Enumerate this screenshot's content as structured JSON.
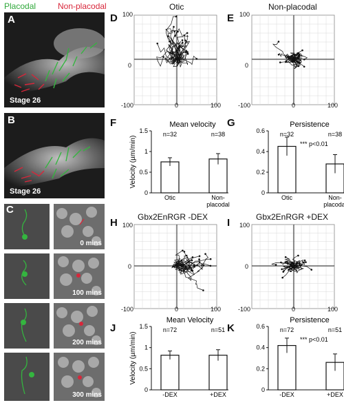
{
  "header": {
    "placodal": "Placodal",
    "non_placodal": "Non-placodal",
    "placodal_color": "#2fa83a",
    "non_placodal_color": "#d8263a"
  },
  "panels": {
    "A": {
      "letter": "A",
      "stage": "Stage 26"
    },
    "B": {
      "letter": "B",
      "stage": "Stage 26"
    },
    "C": {
      "letter": "C",
      "times": [
        "0 mins",
        "100 mins",
        "200 mins",
        "300 mins"
      ]
    },
    "D": {
      "letter": "D",
      "title": "Otic"
    },
    "E": {
      "letter": "E",
      "title": "Non-placodal"
    },
    "F": {
      "letter": "F"
    },
    "G": {
      "letter": "G"
    },
    "H": {
      "letter": "H",
      "title": "Gbx2EnRGR -DEX"
    },
    "I": {
      "letter": "I",
      "title": "Gbx2EnRGR +DEX"
    },
    "J": {
      "letter": "J"
    },
    "K": {
      "letter": "K"
    }
  },
  "track_ticks": {
    "top": "100",
    "zero": "0",
    "neg": "-100",
    "right": "100",
    "yzero": "0"
  },
  "chart_data": [
    {
      "id": "F",
      "type": "bar",
      "title": "Mean velocity",
      "ylabel": "Velocity (µm/min)",
      "ylim": [
        0,
        1.5
      ],
      "yticks": [
        "0",
        "0.5",
        "1",
        "1.5"
      ],
      "categories": [
        "Otic",
        "Non-placodal"
      ],
      "values": [
        0.75,
        0.82
      ],
      "errors": [
        0.1,
        0.13
      ],
      "n_labels": [
        "n=32",
        "n=38"
      ],
      "annotation": ""
    },
    {
      "id": "G",
      "type": "bar",
      "title": "Persistence",
      "ylabel": "",
      "ylim": [
        0,
        0.6
      ],
      "yticks": [
        "0",
        "0.2",
        "0.4",
        "0.6"
      ],
      "categories": [
        "Otic",
        "Non-placodal"
      ],
      "values": [
        0.45,
        0.28
      ],
      "errors": [
        0.09,
        0.09
      ],
      "n_labels": [
        "n=32",
        "n=38"
      ],
      "annotation": "*** p<0.01"
    },
    {
      "id": "J",
      "type": "bar",
      "title": "Mean Velocity",
      "ylabel": "Velocity (µm/min)",
      "ylim": [
        0,
        1.5
      ],
      "yticks": [
        "0",
        "0.5",
        "1",
        "1.5"
      ],
      "categories": [
        "-DEX",
        "+DEX"
      ],
      "values": [
        0.82,
        0.82
      ],
      "errors": [
        0.1,
        0.13
      ],
      "n_labels": [
        "n=72",
        "n=51"
      ],
      "annotation": ""
    },
    {
      "id": "K",
      "type": "bar",
      "title": "Persistence",
      "ylabel": "",
      "ylim": [
        0,
        0.6
      ],
      "yticks": [
        "0",
        "0.2",
        "0.4",
        "0.6"
      ],
      "categories": [
        "-DEX",
        "+DEX"
      ],
      "values": [
        0.42,
        0.26
      ],
      "errors": [
        0.07,
        0.08
      ],
      "n_labels": [
        "n=72",
        "n=51"
      ],
      "annotation": "*** p<0.01"
    }
  ]
}
